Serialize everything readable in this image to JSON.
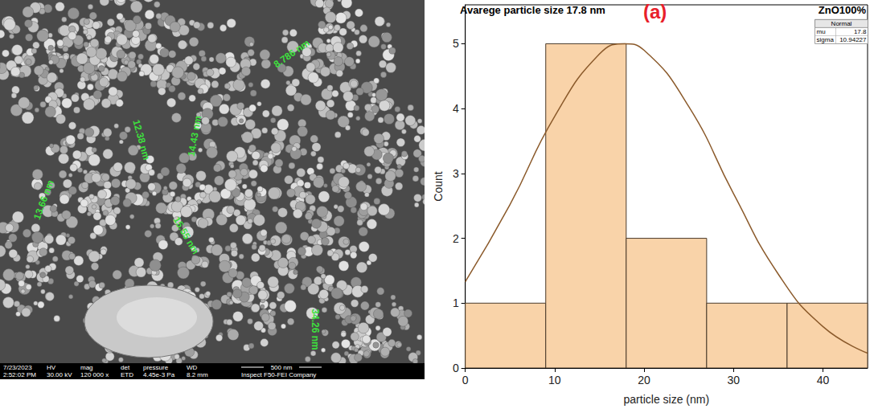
{
  "chart_data": {
    "type": "histogram",
    "title": "Avarege particle size 17.8 nm",
    "panel_label": "(a)",
    "annotations": [
      "ZnO100%"
    ],
    "bins": [
      0,
      9,
      18,
      27,
      36,
      45
    ],
    "counts": [
      1,
      5,
      2,
      1,
      1
    ],
    "color": "#f9d3a9",
    "xlabel": "particle size (nm)",
    "ylabel": "Count",
    "xlim": [
      0,
      45
    ],
    "ylim": [
      0,
      5.6
    ],
    "xticks": [
      0,
      10,
      20,
      30,
      40
    ],
    "yticks": [
      0,
      1,
      2,
      3,
      4,
      5
    ],
    "series": [
      {
        "name": "Normal",
        "type": "line",
        "color": "#8b5a2b",
        "x": [
          0,
          5,
          10,
          15,
          17.8,
          20,
          25,
          30,
          35,
          40,
          45
        ],
        "values": [
          1.33,
          2.52,
          3.88,
          4.84,
          5,
          4.9,
          4.03,
          2.69,
          1.45,
          0.64,
          0.23
        ]
      }
    ],
    "fit_table": {
      "title": "Normal",
      "rows": [
        [
          "mu",
          "17.8"
        ],
        [
          "sigma",
          "10.94227"
        ]
      ]
    }
  },
  "sem_panel": {
    "annotations": [
      "8.786 nm",
      "12.38 nm",
      "14.43 nm",
      "13.66 nm",
      "15.55 nm",
      "34.26 nm"
    ],
    "info_header": [
      "7/23/2023",
      "HV",
      "mag",
      "det",
      "pressure",
      "WD"
    ],
    "info_values": [
      "2:52:02 PM",
      "30.00 kV",
      "120 000 x",
      "ETD",
      "4.45e-3 Pa",
      "8.2 mm"
    ],
    "scale_bar": "500 nm",
    "instrument": "Inspect F50-FEI Company"
  }
}
